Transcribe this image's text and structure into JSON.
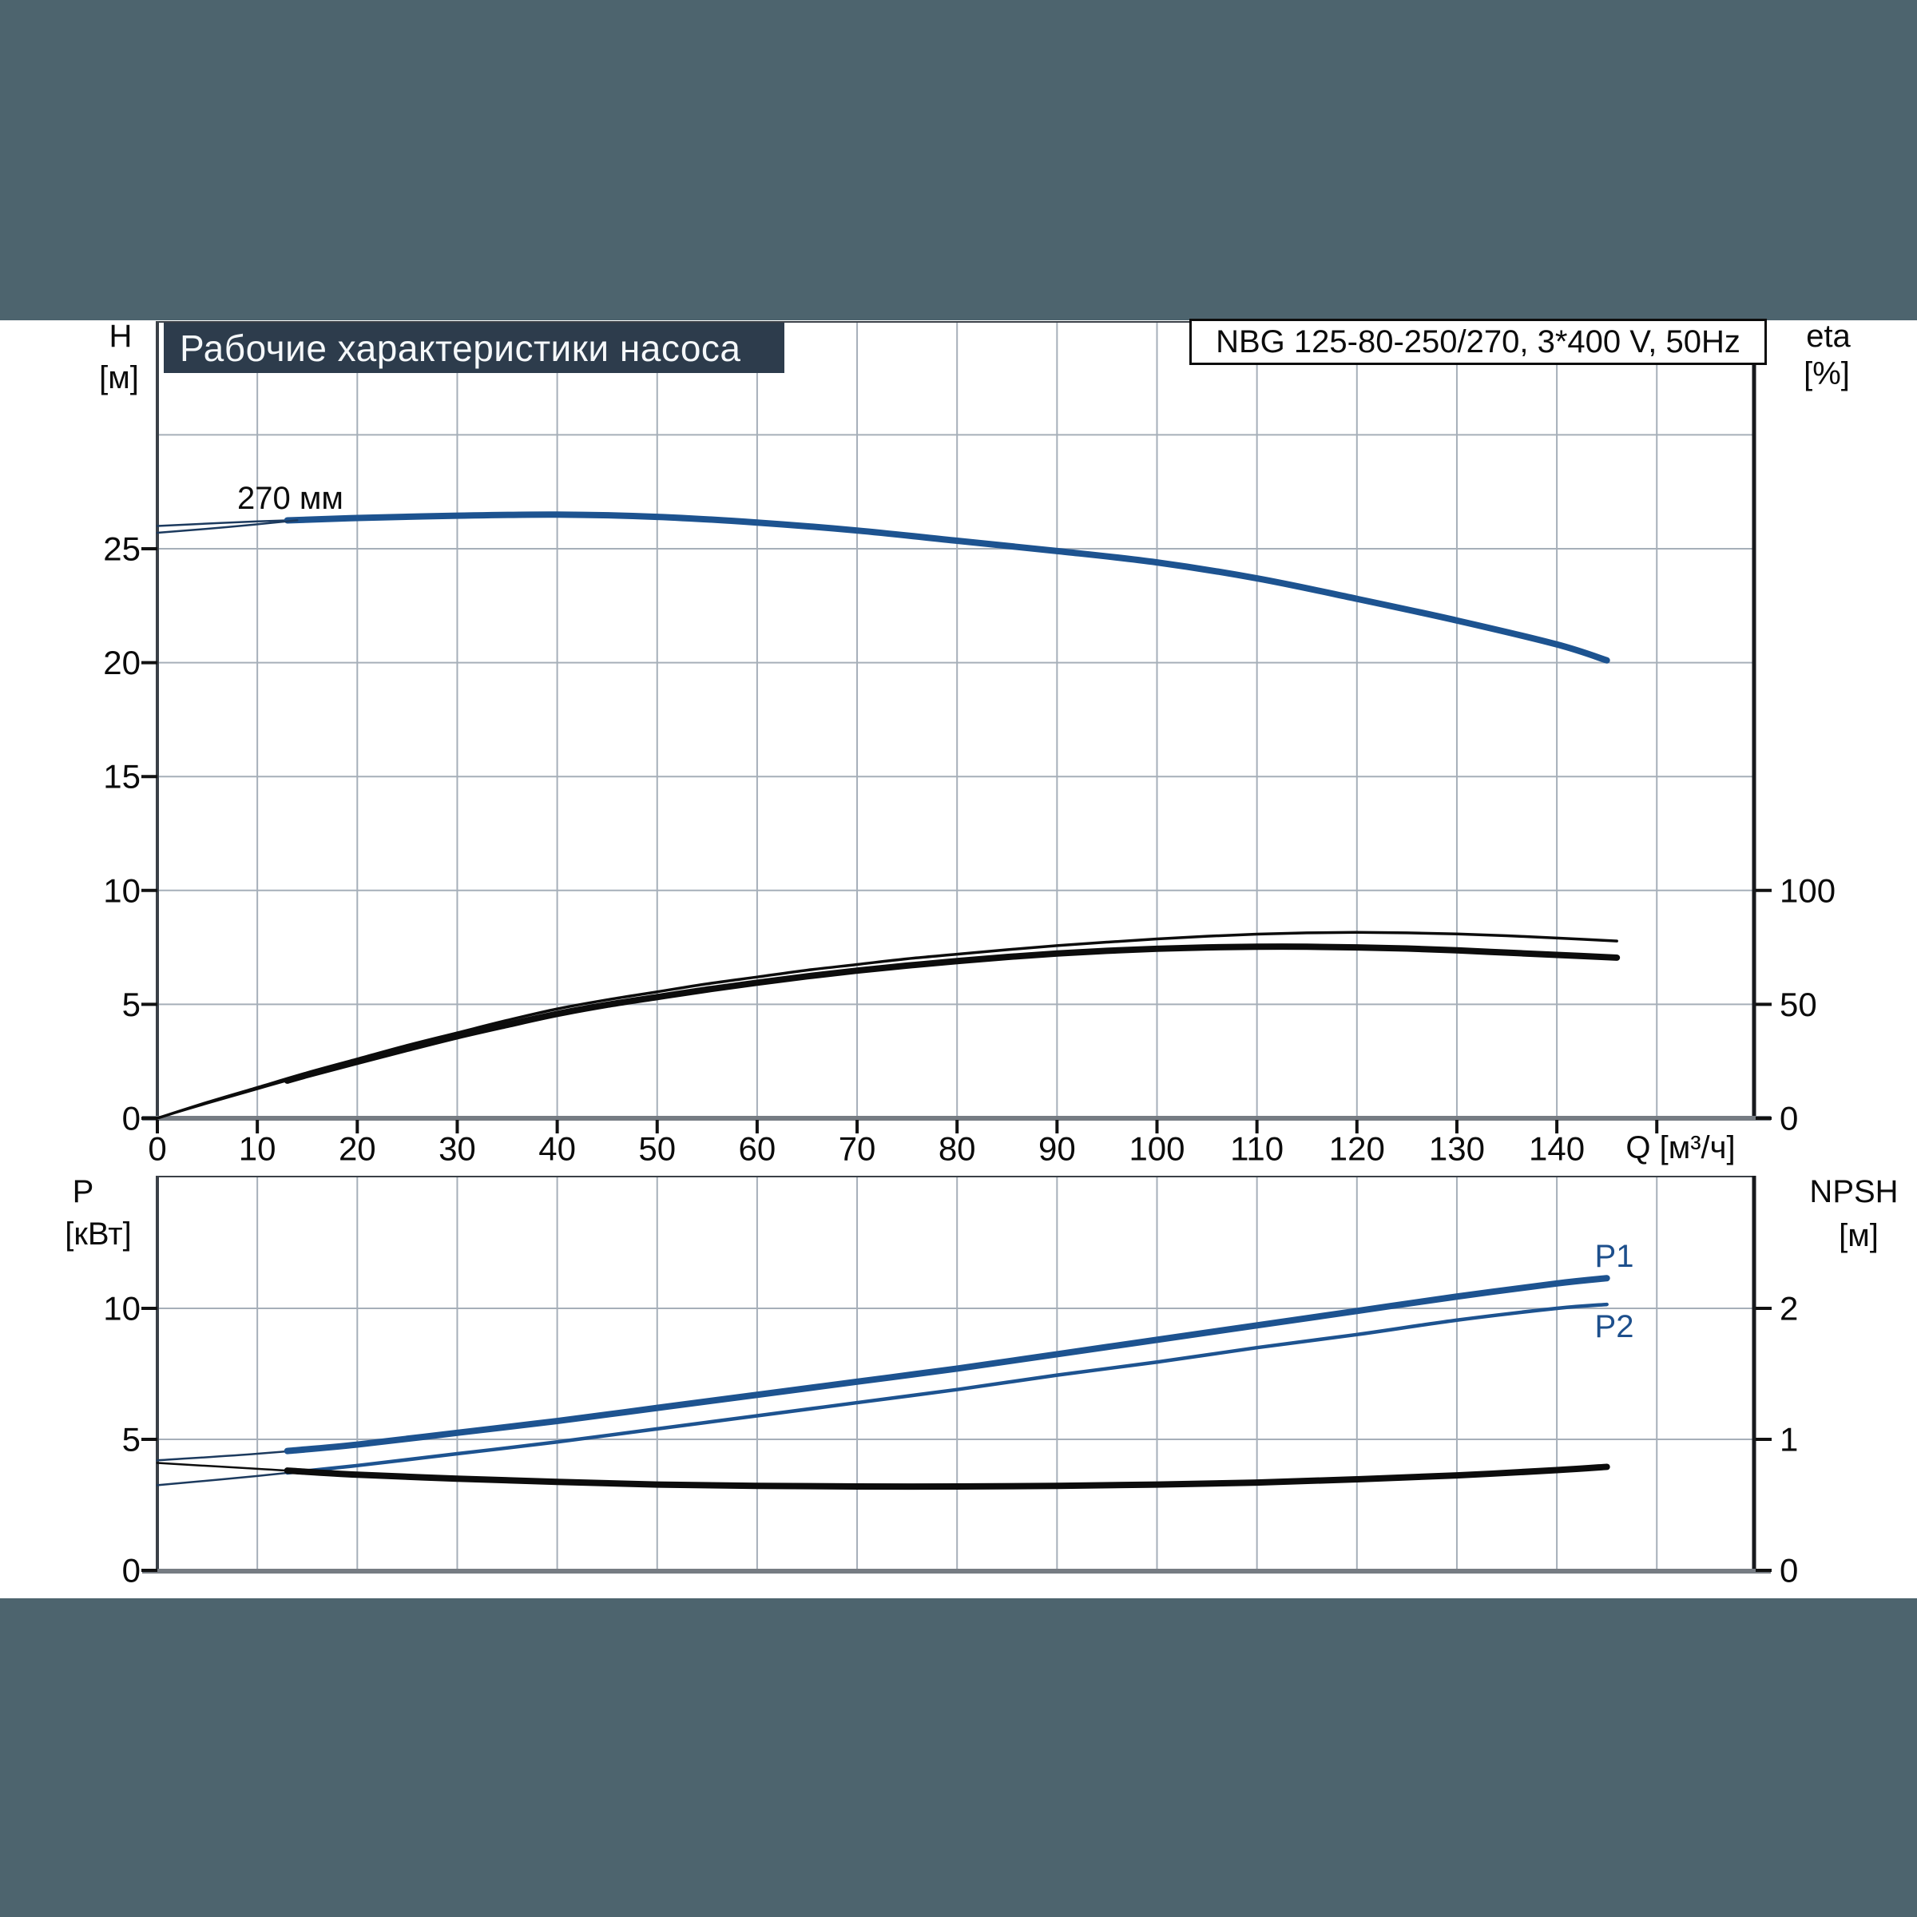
{
  "header": {
    "title": "Рабочие характеристики насоса",
    "pump_model": "NBG 125-80-250/270, 3*400 V, 50Hz"
  },
  "colors": {
    "band": "#4d646e",
    "title_box_bg": "#2d3c4c",
    "title_text": "#f5f8fa",
    "curve_blue": "#1d5390",
    "curve_navy_thin": "#1c3a5e",
    "curve_black": "#0c0c0c",
    "grid": "#a6afb9",
    "axis_dark": "#3a4047",
    "axis_black": "#17191d",
    "axis_gray": "#767c83",
    "tick": "#111111",
    "label_blue": "#1d4f8c",
    "tick_text": "#0b0b0b",
    "pump_box_border": "#0c0c0c"
  },
  "chart_data": [
    {
      "id": "head-efficiency",
      "type": "line",
      "title": "Рабочие характеристики насоса",
      "x_axis": {
        "label": "Q [м³/ч]",
        "ticks": [
          0,
          10,
          20,
          30,
          40,
          50,
          60,
          70,
          80,
          90,
          100,
          110,
          120,
          130,
          140
        ],
        "range": [
          0,
          160
        ],
        "grid_step": 10
      },
      "y_left": {
        "name": "H",
        "unit": "[м]",
        "ticks": [
          0,
          5,
          10,
          15,
          20,
          25
        ],
        "range": [
          0,
          35
        ],
        "grid_step": 5
      },
      "y_right": {
        "name": "eta",
        "unit": "[%]",
        "ticks": [
          0,
          50,
          100
        ],
        "range": [
          0,
          350
        ]
      },
      "legend_position": "none",
      "grid": true,
      "series": [
        {
          "name": "head-curve",
          "label": "270 мм",
          "axis": "left",
          "style": "thin-thick",
          "thick_from": 13,
          "points": [
            [
              0,
              26.0
            ],
            [
              10,
              26.2
            ],
            [
              20,
              26.35
            ],
            [
              30,
              26.45
            ],
            [
              40,
              26.5
            ],
            [
              50,
              26.4
            ],
            [
              60,
              26.15
            ],
            [
              70,
              25.8
            ],
            [
              80,
              25.35
            ],
            [
              90,
              24.9
            ],
            [
              100,
              24.4
            ],
            [
              110,
              23.7
            ],
            [
              120,
              22.8
            ],
            [
              130,
              21.85
            ],
            [
              140,
              20.8
            ],
            [
              145,
              20.1
            ]
          ]
        },
        {
          "name": "head-tolerance-line",
          "label": "",
          "axis": "left",
          "style": "thin",
          "points": [
            [
              0,
              25.7
            ],
            [
              7,
              25.95
            ],
            [
              14,
              26.25
            ]
          ]
        },
        {
          "name": "efficiency-upper",
          "label": "",
          "axis": "right",
          "style": "medium",
          "points": [
            [
              0,
              0
            ],
            [
              5,
              7
            ],
            [
              10,
              13.5
            ],
            [
              15,
              20
            ],
            [
              20,
              26
            ],
            [
              25,
              32
            ],
            [
              30,
              37.5
            ],
            [
              35,
              43
            ],
            [
              40,
              48
            ],
            [
              45,
              52
            ],
            [
              50,
              55.5
            ],
            [
              55,
              59
            ],
            [
              60,
              62
            ],
            [
              65,
              65
            ],
            [
              70,
              67.5
            ],
            [
              75,
              70
            ],
            [
              80,
              72
            ],
            [
              85,
              74
            ],
            [
              90,
              75.8
            ],
            [
              95,
              77.3
            ],
            [
              100,
              78.7
            ],
            [
              105,
              79.9
            ],
            [
              110,
              80.8
            ],
            [
              115,
              81.4
            ],
            [
              120,
              81.6
            ],
            [
              125,
              81.4
            ],
            [
              130,
              80.9
            ],
            [
              135,
              80.1
            ],
            [
              140,
              79.1
            ],
            [
              146,
              77.8
            ]
          ]
        },
        {
          "name": "efficiency-main",
          "label": "",
          "axis": "right",
          "style": "thin-thick",
          "thick_from": 13,
          "points": [
            [
              0,
              0
            ],
            [
              5,
              6.5
            ],
            [
              10,
              12.8
            ],
            [
              15,
              19
            ],
            [
              20,
              24.8
            ],
            [
              25,
              30.5
            ],
            [
              30,
              36
            ],
            [
              35,
              41
            ],
            [
              40,
              45.8
            ],
            [
              45,
              49.8
            ],
            [
              50,
              53.2
            ],
            [
              55,
              56.5
            ],
            [
              60,
              59.5
            ],
            [
              65,
              62.3
            ],
            [
              70,
              64.8
            ],
            [
              75,
              67
            ],
            [
              80,
              69
            ],
            [
              85,
              70.8
            ],
            [
              90,
              72.3
            ],
            [
              95,
              73.5
            ],
            [
              100,
              74.4
            ],
            [
              105,
              75
            ],
            [
              110,
              75.3
            ],
            [
              115,
              75.3
            ],
            [
              120,
              75
            ],
            [
              125,
              74.5
            ],
            [
              130,
              73.7
            ],
            [
              135,
              72.7
            ],
            [
              140,
              71.7
            ],
            [
              146,
              70.5
            ]
          ]
        }
      ]
    },
    {
      "id": "power-npsh",
      "type": "line",
      "x_axis": {
        "label": "",
        "ticks": [],
        "range": [
          0,
          160
        ],
        "grid_step": 10
      },
      "y_left": {
        "name": "P",
        "unit": "[кВт]",
        "ticks": [
          0,
          5,
          10
        ],
        "range": [
          0,
          15.1
        ],
        "grid_step": 5
      },
      "y_right": {
        "name": "NPSH",
        "unit": "[м]",
        "ticks": [
          0,
          1,
          2
        ],
        "range": [
          0,
          3.02
        ]
      },
      "legend_position": "inline",
      "grid": true,
      "series": [
        {
          "name": "power-p1",
          "label": "P1",
          "axis": "left",
          "style": "thin-thick",
          "thick_from": 13,
          "points": [
            [
              0,
              4.2
            ],
            [
              10,
              4.45
            ],
            [
              20,
              4.8
            ],
            [
              30,
              5.25
            ],
            [
              40,
              5.7
            ],
            [
              50,
              6.2
            ],
            [
              60,
              6.7
            ],
            [
              70,
              7.2
            ],
            [
              80,
              7.7
            ],
            [
              90,
              8.25
            ],
            [
              100,
              8.8
            ],
            [
              110,
              9.35
            ],
            [
              120,
              9.9
            ],
            [
              130,
              10.45
            ],
            [
              140,
              10.95
            ],
            [
              145,
              11.15
            ]
          ]
        },
        {
          "name": "power-p2",
          "label": "P2",
          "axis": "left",
          "style": "thin-medium",
          "thick_from": 13,
          "points": [
            [
              0,
              3.25
            ],
            [
              10,
              3.6
            ],
            [
              20,
              4.0
            ],
            [
              30,
              4.45
            ],
            [
              40,
              4.9
            ],
            [
              50,
              5.4
            ],
            [
              60,
              5.9
            ],
            [
              70,
              6.4
            ],
            [
              80,
              6.9
            ],
            [
              90,
              7.45
            ],
            [
              100,
              7.95
            ],
            [
              110,
              8.5
            ],
            [
              120,
              9.0
            ],
            [
              130,
              9.55
            ],
            [
              140,
              10.0
            ],
            [
              145,
              10.15
            ]
          ]
        },
        {
          "name": "npsh-curve",
          "label": "",
          "axis": "right",
          "style": "thin-thick",
          "thick_from": 13,
          "points": [
            [
              0,
              0.82
            ],
            [
              10,
              0.775
            ],
            [
              20,
              0.73
            ],
            [
              30,
              0.7
            ],
            [
              40,
              0.675
            ],
            [
              50,
              0.655
            ],
            [
              60,
              0.645
            ],
            [
              70,
              0.64
            ],
            [
              80,
              0.64
            ],
            [
              90,
              0.645
            ],
            [
              100,
              0.655
            ],
            [
              110,
              0.67
            ],
            [
              120,
              0.695
            ],
            [
              130,
              0.725
            ],
            [
              140,
              0.765
            ],
            [
              145,
              0.79
            ]
          ]
        }
      ]
    }
  ]
}
